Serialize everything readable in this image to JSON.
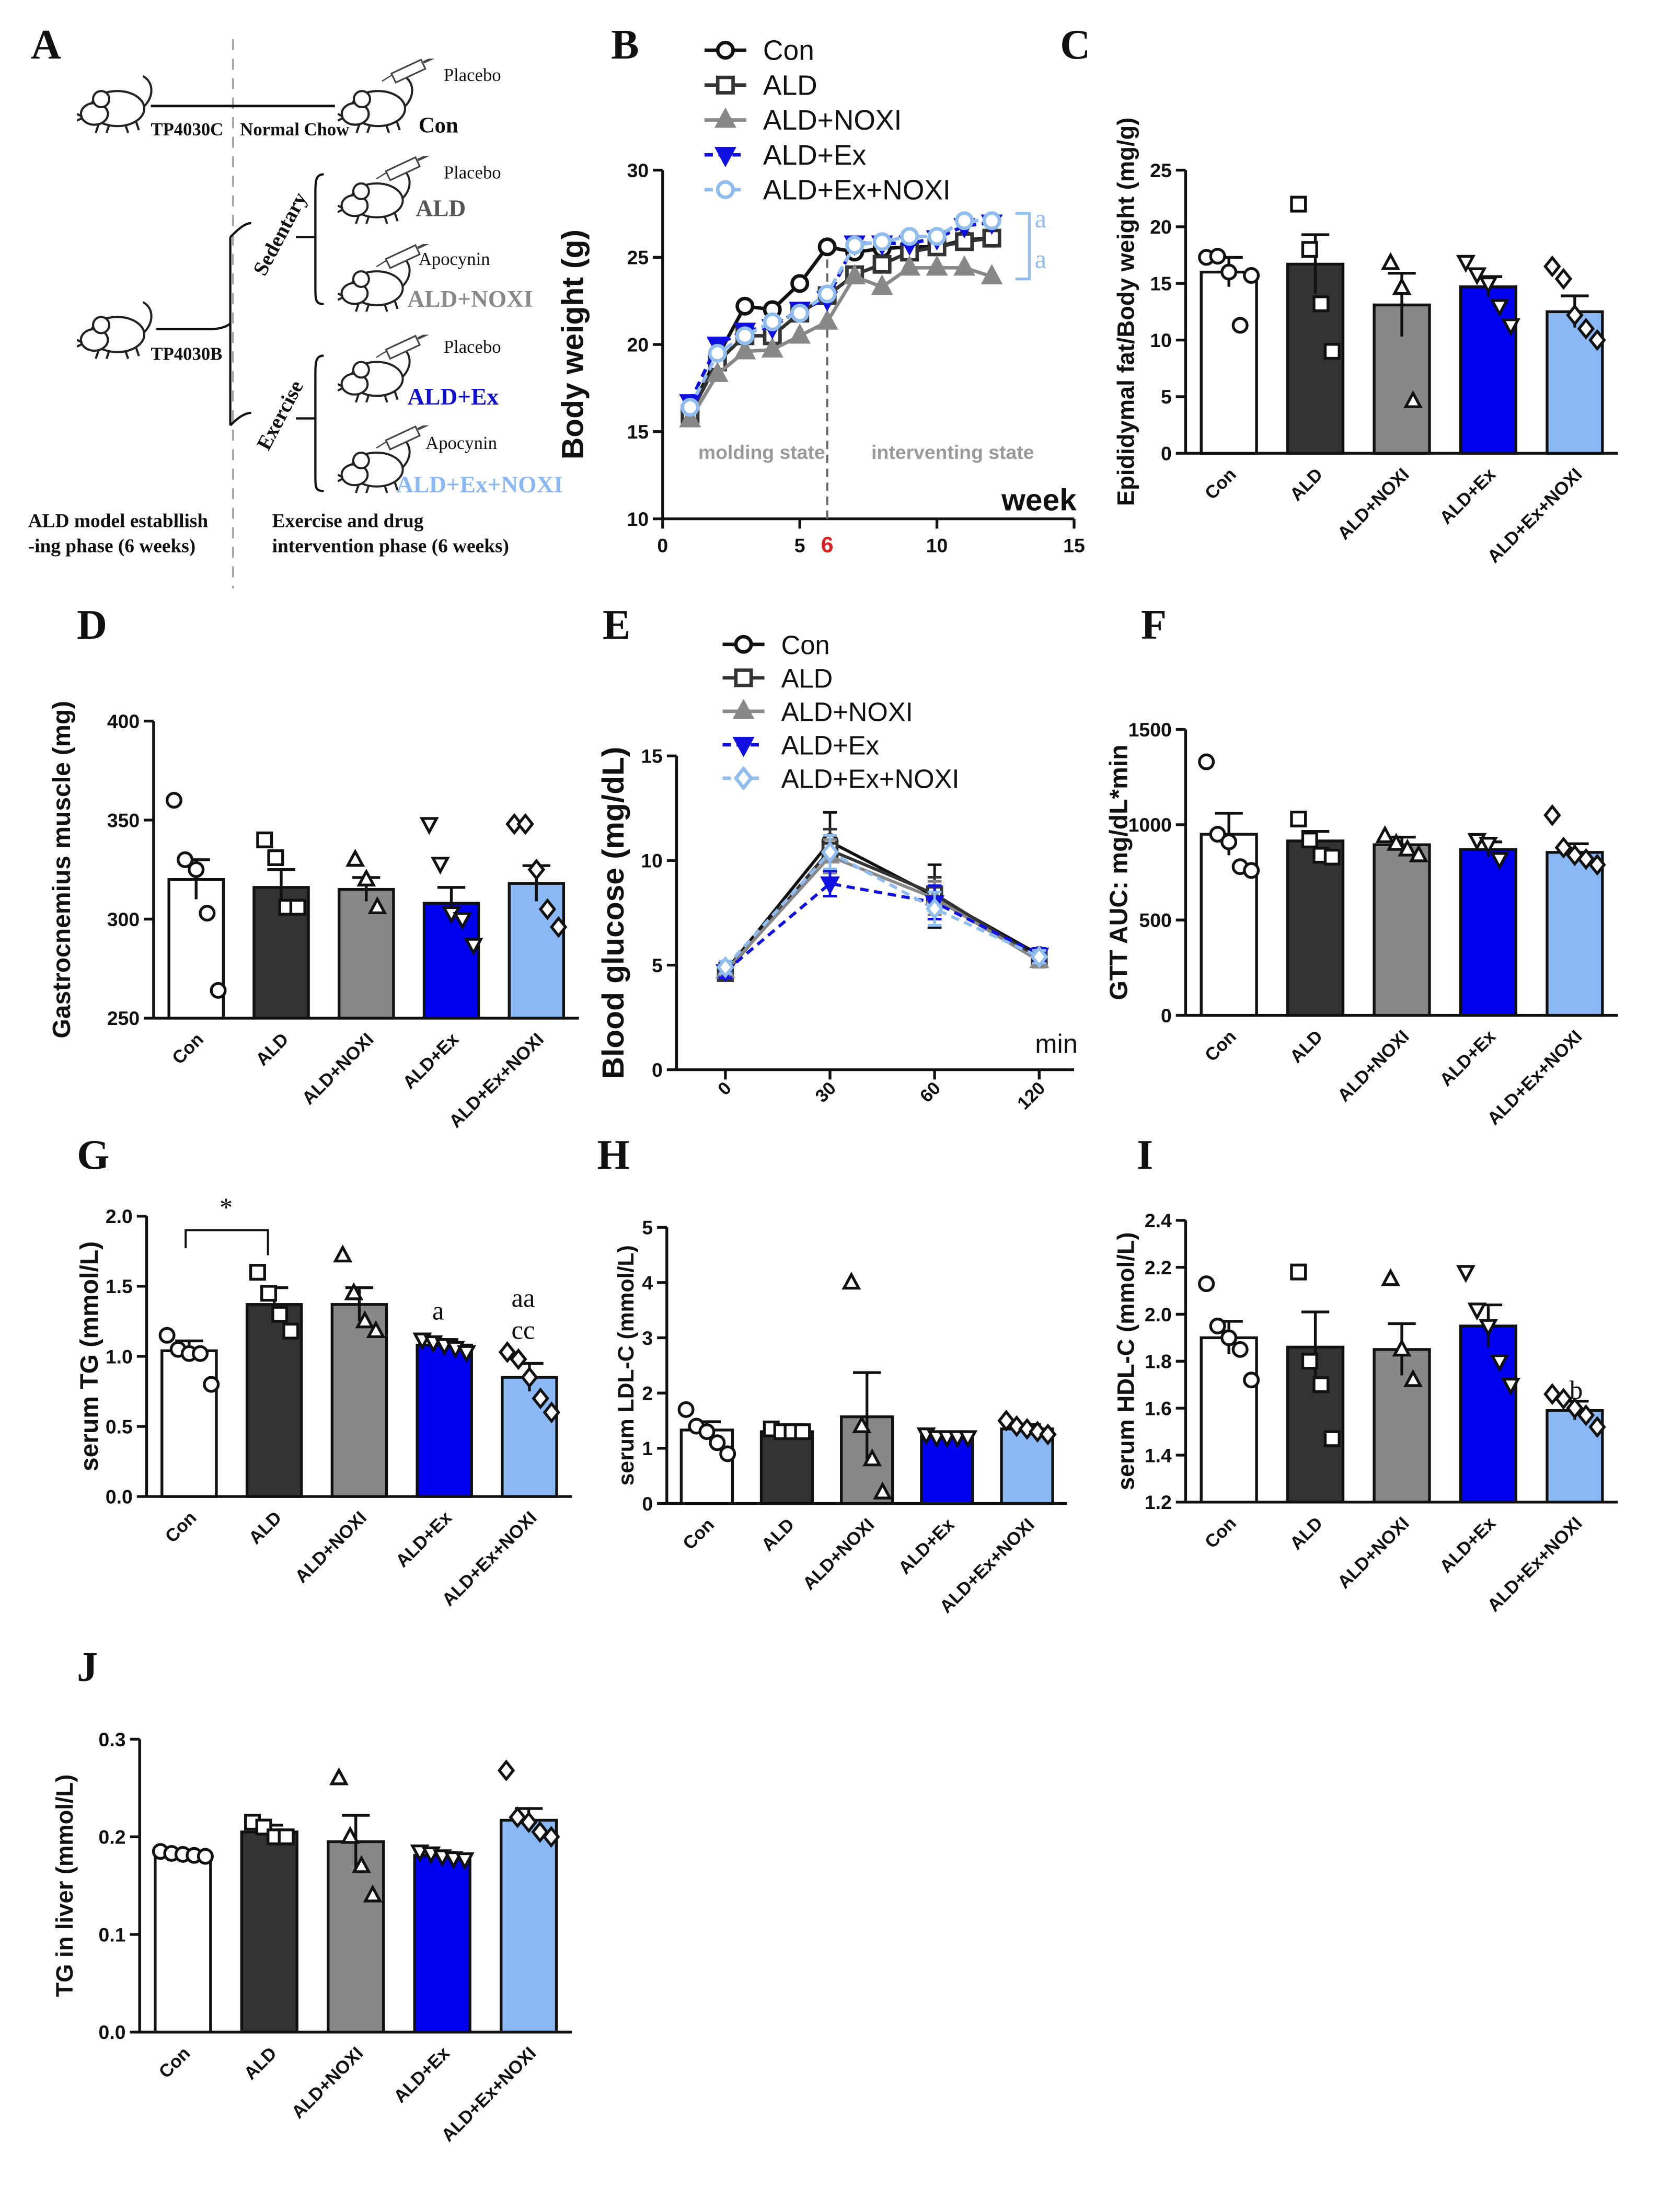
{
  "schematic": {
    "panel_label": "A",
    "diet_control": "TP4030C",
    "diet_control_name": "Normal Chow",
    "diet_model": "TP4030B",
    "control": {
      "treatment": "Placebo",
      "name": "Con"
    },
    "groups": [
      {
        "treatment": "Placebo",
        "name": "ALD"
      },
      {
        "treatment": "Apocynin",
        "name": "ALD+NOXI"
      },
      {
        "treatment": "Placebo",
        "name": "ALD+Ex"
      },
      {
        "treatment": "Apocynin",
        "name": "ALD+Ex+NOXI"
      }
    ],
    "branches": [
      "Sedentary",
      "Exercise"
    ],
    "phase_1": [
      "ALD model establlish",
      "-ing phase (6 weeks)"
    ],
    "phase_2": [
      "Exercise and drug",
      "intervention phase (6 weeks)"
    ]
  },
  "chart_data": [
    {
      "type": "line",
      "panel_label": "B",
      "ylabel": "Body weight (g)",
      "xlabel": "week",
      "x": [
        1,
        2,
        3,
        4,
        5,
        6,
        7,
        8,
        9,
        10,
        11,
        12
      ],
      "xlim": [
        0,
        15
      ],
      "xticks": [
        0,
        5,
        10,
        15
      ],
      "ylim": [
        10,
        30
      ],
      "yticks": [
        10,
        15,
        20,
        25,
        30
      ],
      "divider": 6,
      "annotations": [
        "molding state",
        "interventing state",
        "a",
        "a"
      ],
      "series": [
        {
          "name": "Con",
          "color": "#111111",
          "marker": "circle",
          "filled": false,
          "dashed": false,
          "values": [
            16.2,
            19.3,
            22.2,
            22,
            23.5,
            25.6,
            25.3,
            25.5,
            25.6,
            25.6,
            26,
            26.1
          ]
        },
        {
          "name": "ALD",
          "color": "#333333",
          "marker": "square",
          "filled": false,
          "dashed": false,
          "values": [
            16,
            19,
            20.5,
            20.5,
            21.8,
            22.8,
            24,
            24.6,
            25.3,
            25.6,
            25.9,
            26.1
          ]
        },
        {
          "name": "ALD+NOXI",
          "color": "#888888",
          "marker": "triangle",
          "filled": true,
          "dashed": false,
          "values": [
            15.7,
            18.3,
            19.6,
            19.7,
            20.5,
            21.3,
            23.9,
            23.3,
            24.4,
            24.4,
            24.4,
            23.9
          ]
        },
        {
          "name": "ALD+Ex",
          "color": "#1010e0",
          "marker": "triangle-down",
          "filled": true,
          "dashed": true,
          "values": [
            16.7,
            20,
            20.8,
            21,
            22,
            22.6,
            25.8,
            25.8,
            25.8,
            26.1,
            26.8,
            27
          ]
        },
        {
          "name": "ALD+Ex+NOXI",
          "color": "#90bdf0",
          "marker": "circle",
          "filled": false,
          "dashed": true,
          "values": [
            16.4,
            19.5,
            20.5,
            21.3,
            21.8,
            22.9,
            25.7,
            25.9,
            26.2,
            26.2,
            27.1,
            27.1
          ]
        }
      ]
    },
    {
      "type": "bar",
      "panel_label": "C",
      "ylabel": "Epididymal fat/Body weight (mg/g)",
      "categories": [
        "Con",
        "ALD",
        "ALD+NOXI",
        "ALD+Ex",
        "ALD+Ex+NOXI"
      ],
      "values": [
        16,
        16.7,
        13.1,
        14.7,
        12.5
      ],
      "errors": [
        1.3,
        2.6,
        2.8,
        0.9,
        1.4
      ],
      "points": [
        [
          17.3,
          17.4,
          16,
          11.3,
          15.7
        ],
        [
          22,
          18,
          13.2,
          9
        ],
        [
          16.8,
          14.6,
          4.6
        ],
        [
          16.9,
          15.8,
          15,
          13,
          11.3
        ],
        [
          16.5,
          15.4,
          12.2,
          11,
          10
        ]
      ],
      "colors": [
        "#ffffff",
        "#333333",
        "#888888",
        "#0000f0",
        "#8ab8f5"
      ],
      "markers": [
        "circle",
        "square",
        "triangle",
        "triangle-down",
        "diamond"
      ],
      "ylim": [
        0,
        25
      ],
      "yticks": [
        0,
        5,
        10,
        15,
        20,
        25
      ]
    },
    {
      "type": "bar",
      "panel_label": "D",
      "ylabel": "Gastrocnemius muscle (mg)",
      "categories": [
        "Con",
        "ALD",
        "ALD+NOXI",
        "ALD+Ex",
        "ALD+Ex+NOXI"
      ],
      "values": [
        320,
        316,
        315,
        308,
        318
      ],
      "errors": [
        10,
        9,
        6,
        8,
        9
      ],
      "points": [
        [
          360,
          330,
          325,
          303,
          264
        ],
        [
          340,
          331,
          306,
          306
        ],
        [
          330,
          320,
          306
        ],
        [
          348,
          328,
          303,
          300,
          287
        ],
        [
          348,
          348,
          325,
          305,
          296
        ]
      ],
      "colors": [
        "#ffffff",
        "#333333",
        "#888888",
        "#0000f0",
        "#8ab8f5"
      ],
      "markers": [
        "circle",
        "square",
        "triangle",
        "triangle-down",
        "diamond"
      ],
      "ylim": [
        250,
        400
      ],
      "yticks": [
        250,
        300,
        350,
        400
      ]
    },
    {
      "type": "errorline",
      "panel_label": "E",
      "ylabel": "Blood glucose (mg/dL)",
      "xlabel": "min",
      "categories": [
        "0",
        "30",
        "60",
        "120"
      ],
      "ylim": [
        0,
        15
      ],
      "yticks": [
        0,
        5,
        10,
        15
      ],
      "series": [
        {
          "name": "Con",
          "color": "#111111",
          "marker": "circle",
          "filled": false,
          "dashed": false,
          "values": [
            4.7,
            10.9,
            8.3,
            5.5
          ],
          "errors": [
            0.4,
            1.4,
            1.5,
            0.3
          ]
        },
        {
          "name": "ALD",
          "color": "#333333",
          "marker": "square",
          "filled": false,
          "dashed": false,
          "values": [
            4.6,
            10.5,
            8.4,
            5.3
          ],
          "errors": [
            0.3,
            1,
            0.8,
            0.3
          ]
        },
        {
          "name": "ALD+NOXI",
          "color": "#888888",
          "marker": "triangle",
          "filled": true,
          "dashed": false,
          "values": [
            4.7,
            10.2,
            8.2,
            5.2
          ],
          "errors": [
            0.3,
            0.8,
            0.8,
            0.3
          ]
        },
        {
          "name": "ALD+Ex",
          "color": "#1010e0",
          "marker": "triangle-down",
          "filled": true,
          "dashed": true,
          "values": [
            4.7,
            8.9,
            8,
            5.5
          ],
          "errors": [
            0.3,
            0.6,
            0.8,
            0.3
          ]
        },
        {
          "name": "ALD+Ex+NOXI",
          "color": "#90bdf0",
          "marker": "diamond",
          "filled": false,
          "dashed": true,
          "values": [
            4.9,
            10.4,
            7.7,
            5.4
          ],
          "errors": [
            0.3,
            0.8,
            0.8,
            0.3
          ]
        }
      ]
    },
    {
      "type": "bar",
      "panel_label": "F",
      "ylabel": "GTT AUC: mg/dL*min",
      "categories": [
        "Con",
        "ALD",
        "ALD+NOXI",
        "ALD+Ex",
        "ALD+Ex+NOXI"
      ],
      "values": [
        950,
        915,
        895,
        870,
        855
      ],
      "errors": [
        110,
        50,
        40,
        40,
        45
      ],
      "points": [
        [
          1330,
          950,
          910,
          780,
          760
        ],
        [
          1030,
          920,
          840,
          830
        ],
        [
          940,
          900,
          870,
          840
        ],
        [
          920,
          900,
          820
        ],
        [
          1050,
          880,
          840,
          820,
          790
        ]
      ],
      "colors": [
        "#ffffff",
        "#333333",
        "#888888",
        "#0000f0",
        "#8ab8f5"
      ],
      "markers": [
        "circle",
        "square",
        "triangle",
        "triangle-down",
        "diamond"
      ],
      "ylim": [
        0,
        1500
      ],
      "yticks": [
        0,
        500,
        1000,
        1500
      ]
    },
    {
      "type": "bar",
      "panel_label": "G",
      "ylabel": "serum TG (mmol/L)",
      "categories": [
        "Con",
        "ALD",
        "ALD+NOXI",
        "ALD+Ex",
        "ALD+Ex+NOXI"
      ],
      "values": [
        1.04,
        1.37,
        1.37,
        1.08,
        0.85
      ],
      "errors": [
        0.07,
        0.12,
        0.12,
        0.04,
        0.1
      ],
      "points": [
        [
          1.15,
          1.05,
          1.02,
          1.02,
          0.8
        ],
        [
          1.6,
          1.45,
          1.3,
          1.18
        ],
        [
          1.72,
          1.45,
          1.25,
          1.18
        ],
        [
          1.12,
          1.1,
          1.08,
          1.06,
          1.03
        ],
        [
          1.03,
          0.98,
          0.85,
          0.7,
          0.6
        ]
      ],
      "colors": [
        "#ffffff",
        "#333333",
        "#888888",
        "#0000f0",
        "#8ab8f5"
      ],
      "markers": [
        "circle",
        "square",
        "triangle",
        "triangle-down",
        "diamond"
      ],
      "ylim": [
        0,
        2
      ],
      "yticks": [
        {
          "value": 0,
          "label": "0.0"
        },
        0.5,
        {
          "value": 1,
          "label": "1.0"
        },
        1.5,
        {
          "value": 2,
          "label": "2.0"
        }
      ],
      "annotations": [
        "*",
        "a",
        "aa",
        "cc"
      ]
    },
    {
      "type": "bar",
      "panel_label": "H",
      "ylabel": "serum LDL-C (mmol/L)",
      "categories": [
        "Con",
        "ALD",
        "ALD+NOXI",
        "ALD+Ex",
        "ALD+Ex+NOXI"
      ],
      "values": [
        1.33,
        1.3,
        1.57,
        1.22,
        1.35
      ],
      "errors": [
        0.15,
        0.08,
        0.8,
        0.05,
        0.08
      ],
      "points": [
        [
          1.7,
          1.4,
          1.3,
          1.1,
          0.9
        ],
        [
          1.35,
          1.3,
          1.3,
          1.3
        ],
        [
          4,
          1.4,
          0.8,
          0.2
        ],
        [
          1.25,
          1.2,
          1.2,
          1.2,
          1.2
        ],
        [
          1.5,
          1.4,
          1.35,
          1.3,
          1.25
        ]
      ],
      "colors": [
        "#ffffff",
        "#333333",
        "#888888",
        "#0000f0",
        "#8ab8f5"
      ],
      "markers": [
        "circle",
        "square",
        "triangle",
        "triangle-down",
        "diamond"
      ],
      "ylim": [
        0,
        5
      ],
      "yticks": [
        0,
        1,
        2,
        3,
        4,
        5
      ]
    },
    {
      "type": "bar",
      "panel_label": "I",
      "ylabel": "serum HDL-C (mmol/L)",
      "categories": [
        "Con",
        "ALD",
        "ALD+NOXI",
        "ALD+Ex",
        "ALD+Ex+NOXI"
      ],
      "values": [
        1.9,
        1.86,
        1.85,
        1.95,
        1.59
      ],
      "errors": [
        0.07,
        0.15,
        0.11,
        0.09,
        0.04
      ],
      "points": [
        [
          2.13,
          1.95,
          1.9,
          1.85,
          1.72
        ],
        [
          2.18,
          1.8,
          1.7,
          1.47
        ],
        [
          2.15,
          1.85,
          1.72
        ],
        [
          2.18,
          2.02,
          1.95,
          1.8,
          1.7
        ],
        [
          1.66,
          1.64,
          1.6,
          1.57,
          1.52
        ]
      ],
      "colors": [
        "#ffffff",
        "#333333",
        "#888888",
        "#0000f0",
        "#8ab8f5"
      ],
      "markers": [
        "circle",
        "square",
        "triangle",
        "triangle-down",
        "diamond"
      ],
      "ylim": [
        1.2,
        2.4
      ],
      "yticks": [
        1.2,
        1.4,
        1.6,
        1.8,
        {
          "value": 2,
          "label": "2.0"
        },
        2.2,
        2.4
      ],
      "annotations": [
        "b"
      ]
    },
    {
      "type": "bar",
      "panel_label": "J",
      "ylabel": "TG in liver (mmol/L)",
      "categories": [
        "Con",
        "ALD",
        "ALD+NOXI",
        "ALD+Ex",
        "ALD+Ex+NOXI"
      ],
      "values": [
        0.183,
        0.205,
        0.195,
        0.181,
        0.217
      ],
      "errors": [
        0.002,
        0.007,
        0.027,
        0.003,
        0.012
      ],
      "points": [
        [
          0.185,
          0.183,
          0.182,
          0.181,
          0.18
        ],
        [
          0.215,
          0.21,
          0.2,
          0.2
        ],
        [
          0.26,
          0.2,
          0.17,
          0.14
        ],
        [
          0.185,
          0.183,
          0.18,
          0.178,
          0.177
        ],
        [
          0.268,
          0.22,
          0.215,
          0.205,
          0.2
        ]
      ],
      "colors": [
        "#ffffff",
        "#333333",
        "#888888",
        "#0000f0",
        "#8ab8f5"
      ],
      "markers": [
        "circle",
        "square",
        "triangle",
        "triangle-down",
        "diamond"
      ],
      "ylim": [
        0,
        0.3
      ],
      "yticks": [
        {
          "value": 0,
          "label": "0.0"
        },
        0.1,
        0.2,
        0.3
      ]
    }
  ]
}
